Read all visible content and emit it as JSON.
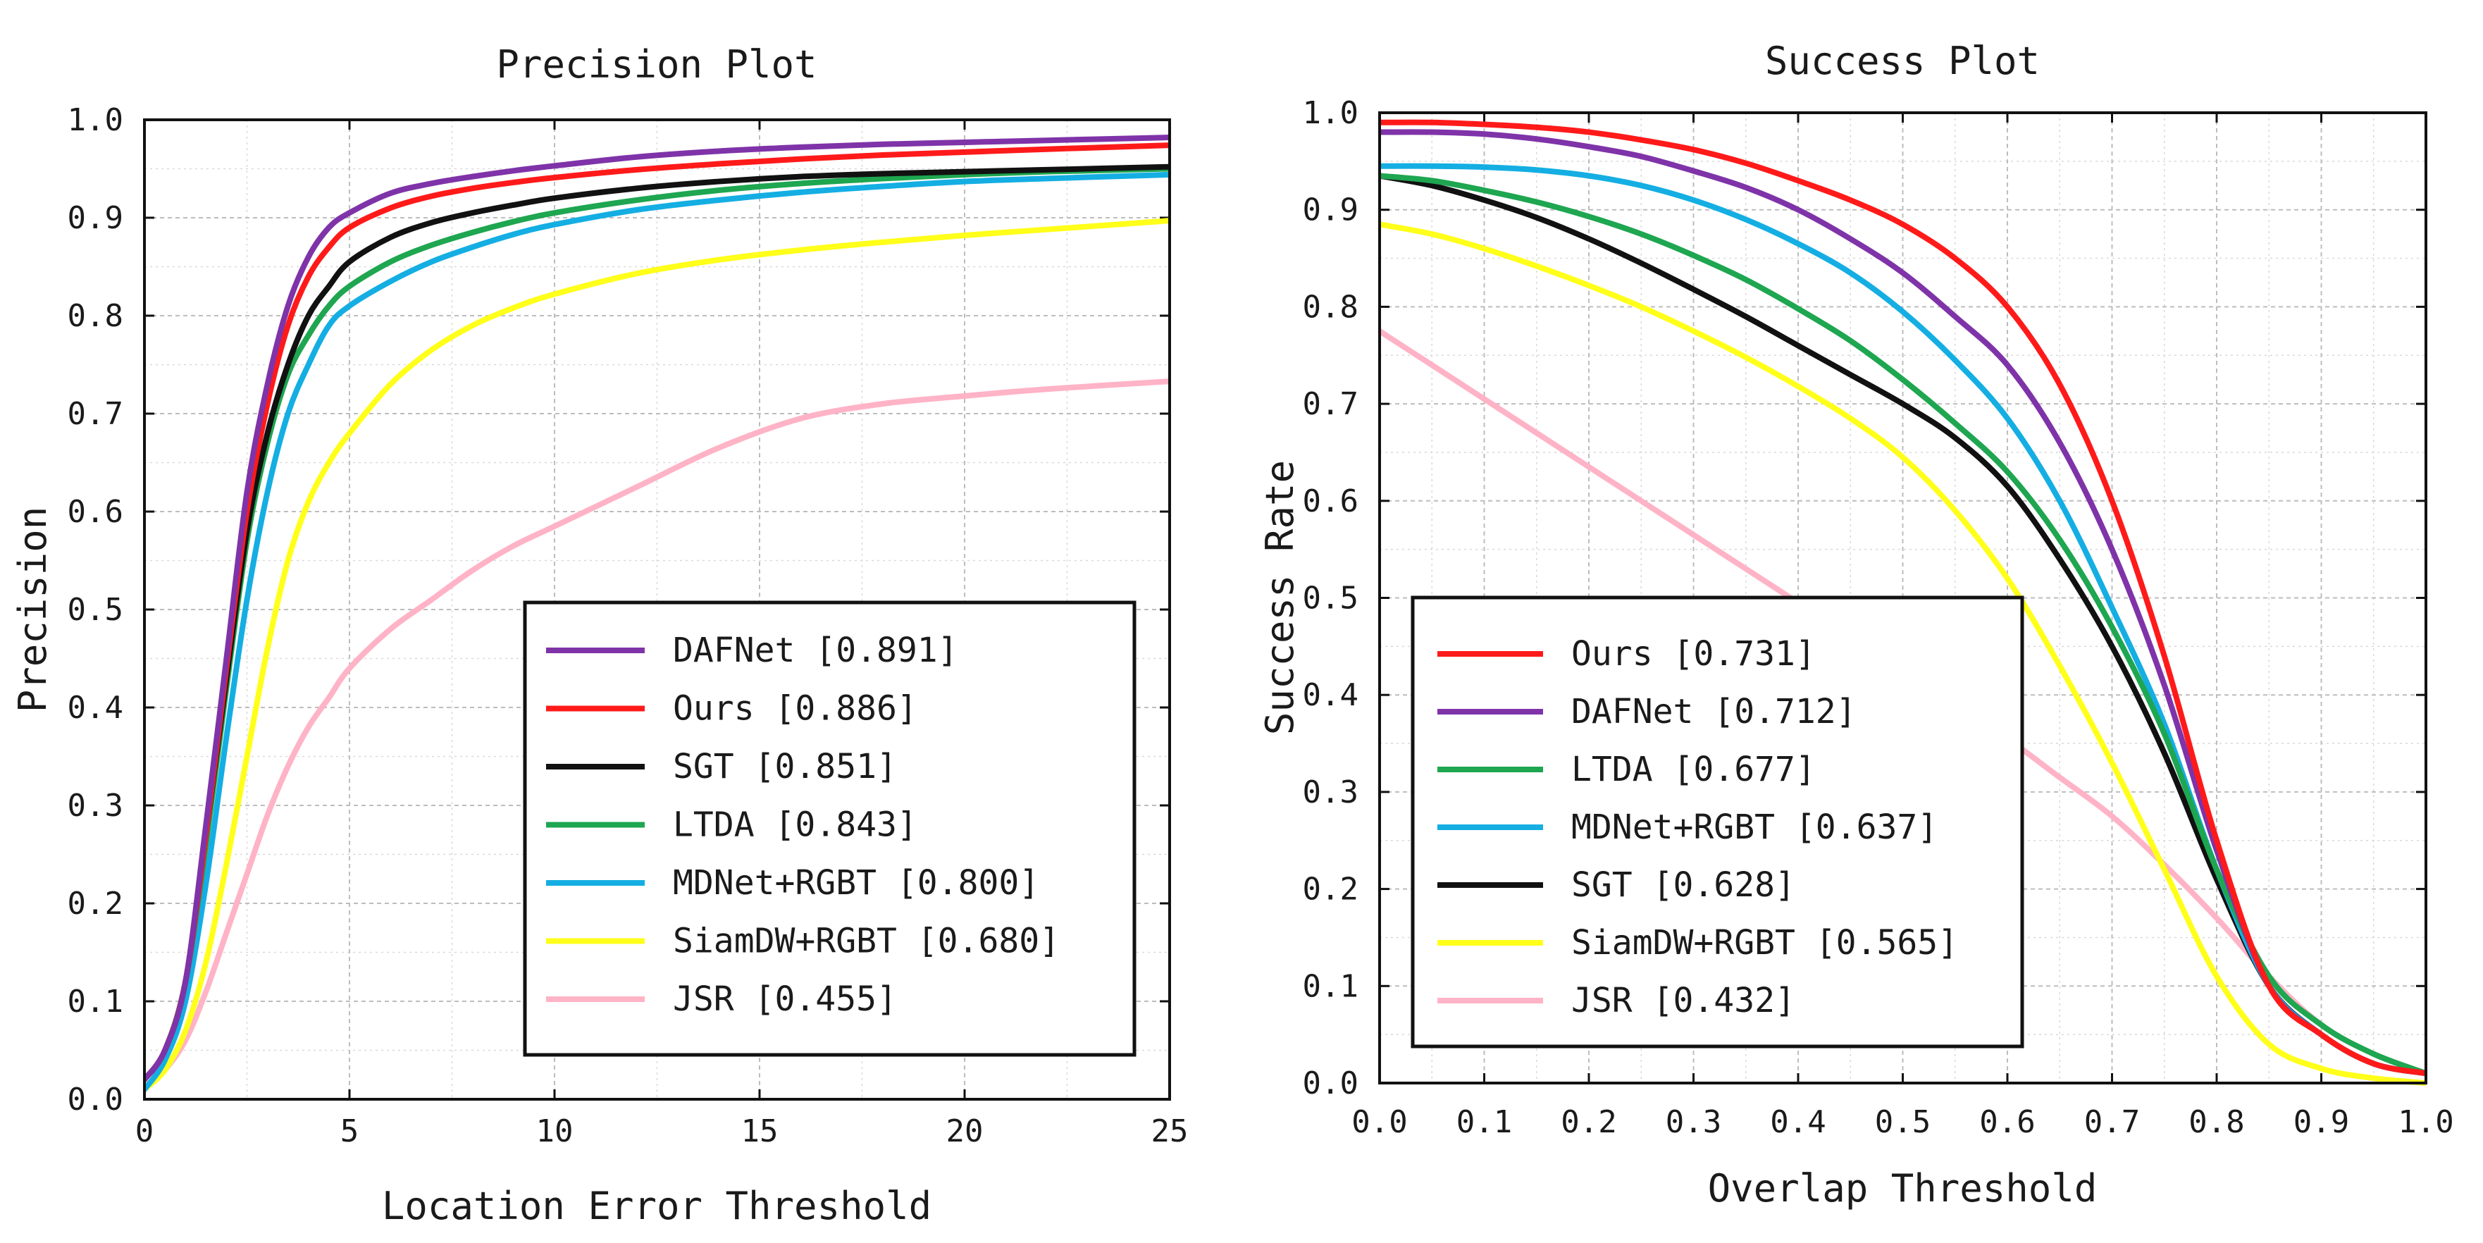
{
  "chart_data": [
    {
      "id": "precision",
      "type": "line",
      "title": "Precision Plot",
      "xlabel": "Location Error Threshold",
      "ylabel": "Precision",
      "xlim": [
        0,
        25
      ],
      "ylim": [
        0,
        1
      ],
      "x_ticks": [
        0,
        5,
        10,
        15,
        20,
        25
      ],
      "x_tick_labels": [
        "0",
        "5",
        "10",
        "15",
        "20",
        "25"
      ],
      "y_ticks": [
        0,
        0.1,
        0.2,
        0.3,
        0.4,
        0.5,
        0.6,
        0.7,
        0.8,
        0.9,
        1.0
      ],
      "y_tick_labels": [
        "0.0",
        "0.1",
        "0.2",
        "0.3",
        "0.4",
        "0.5",
        "0.6",
        "0.7",
        "0.8",
        "0.9",
        "1.0"
      ],
      "grid": true,
      "legend_position": "lower-right",
      "x": [
        0,
        0.5,
        1,
        1.5,
        2,
        2.5,
        3,
        3.5,
        4,
        4.5,
        5,
        6,
        7,
        8,
        9,
        10,
        12,
        14,
        16,
        18,
        20,
        22,
        25
      ],
      "series": [
        {
          "name": "DAFNet",
          "legend": "DAFNet [0.891]",
          "color": "#7f33a8",
          "values": [
            0.02,
            0.05,
            0.12,
            0.28,
            0.45,
            0.62,
            0.73,
            0.81,
            0.86,
            0.89,
            0.905,
            0.925,
            0.935,
            0.942,
            0.948,
            0.953,
            0.962,
            0.968,
            0.972,
            0.975,
            0.977,
            0.979,
            0.982
          ]
        },
        {
          "name": "Ours",
          "legend": "Ours [0.886]",
          "color": "#ff1a1a",
          "values": [
            0.02,
            0.05,
            0.12,
            0.27,
            0.44,
            0.6,
            0.71,
            0.79,
            0.84,
            0.87,
            0.89,
            0.91,
            0.922,
            0.93,
            0.936,
            0.941,
            0.949,
            0.955,
            0.96,
            0.964,
            0.967,
            0.97,
            0.974
          ]
        },
        {
          "name": "SGT",
          "legend": "SGT [0.851]",
          "color": "#111111",
          "values": [
            0.02,
            0.05,
            0.12,
            0.27,
            0.43,
            0.58,
            0.68,
            0.75,
            0.8,
            0.83,
            0.855,
            0.88,
            0.895,
            0.905,
            0.913,
            0.92,
            0.93,
            0.937,
            0.942,
            0.945,
            0.947,
            0.949,
            0.952
          ]
        },
        {
          "name": "LTDA",
          "legend": "LTDA [0.843]",
          "color": "#1ea650",
          "values": [
            0.02,
            0.05,
            0.12,
            0.26,
            0.42,
            0.57,
            0.67,
            0.74,
            0.78,
            0.81,
            0.83,
            0.855,
            0.872,
            0.885,
            0.896,
            0.905,
            0.918,
            0.928,
            0.935,
            0.94,
            0.944,
            0.947,
            0.95
          ]
        },
        {
          "name": "MDNet+RGBT",
          "legend": "MDNet+RGBT [0.800]",
          "color": "#14aee3",
          "values": [
            0.01,
            0.04,
            0.1,
            0.22,
            0.37,
            0.51,
            0.62,
            0.7,
            0.75,
            0.79,
            0.81,
            0.835,
            0.855,
            0.87,
            0.883,
            0.893,
            0.908,
            0.918,
            0.926,
            0.932,
            0.937,
            0.94,
            0.944
          ]
        },
        {
          "name": "SiamDW+RGBT",
          "legend": "SiamDW+RGBT [0.680]",
          "color": "#ffff1a",
          "values": [
            0.01,
            0.03,
            0.07,
            0.14,
            0.24,
            0.35,
            0.46,
            0.55,
            0.61,
            0.65,
            0.68,
            0.73,
            0.765,
            0.79,
            0.808,
            0.822,
            0.843,
            0.857,
            0.867,
            0.875,
            0.882,
            0.888,
            0.897
          ]
        },
        {
          "name": "JSR",
          "legend": "JSR [0.455]",
          "color": "#ffb3c6",
          "values": [
            0.01,
            0.03,
            0.06,
            0.11,
            0.17,
            0.23,
            0.29,
            0.34,
            0.38,
            0.41,
            0.44,
            0.48,
            0.51,
            0.54,
            0.565,
            0.585,
            0.625,
            0.665,
            0.695,
            0.71,
            0.718,
            0.725,
            0.733
          ]
        }
      ]
    },
    {
      "id": "success",
      "type": "line",
      "title": "Success Plot",
      "xlabel": "Overlap Threshold",
      "ylabel": "Success Rate",
      "xlim": [
        0,
        1
      ],
      "ylim": [
        0,
        1
      ],
      "x_ticks": [
        0,
        0.1,
        0.2,
        0.3,
        0.4,
        0.5,
        0.6,
        0.7,
        0.8,
        0.9,
        1.0
      ],
      "x_tick_labels": [
        "0.0",
        "0.1",
        "0.2",
        "0.3",
        "0.4",
        "0.5",
        "0.6",
        "0.7",
        "0.8",
        "0.9",
        "1.0"
      ],
      "y_ticks": [
        0,
        0.1,
        0.2,
        0.3,
        0.4,
        0.5,
        0.6,
        0.7,
        0.8,
        0.9,
        1.0
      ],
      "y_tick_labels": [
        "0.0",
        "0.1",
        "0.2",
        "0.3",
        "0.4",
        "0.5",
        "0.6",
        "0.7",
        "0.8",
        "0.9",
        "1.0"
      ],
      "grid": true,
      "legend_position": "lower-left",
      "x": [
        0,
        0.05,
        0.1,
        0.15,
        0.2,
        0.25,
        0.3,
        0.35,
        0.4,
        0.45,
        0.5,
        0.55,
        0.6,
        0.65,
        0.7,
        0.75,
        0.8,
        0.85,
        0.9,
        0.95,
        1.0
      ],
      "series": [
        {
          "name": "Ours",
          "legend": "Ours [0.731]",
          "color": "#ff1a1a",
          "values": [
            0.99,
            0.99,
            0.988,
            0.985,
            0.98,
            0.972,
            0.962,
            0.948,
            0.93,
            0.91,
            0.885,
            0.85,
            0.8,
            0.72,
            0.6,
            0.44,
            0.25,
            0.1,
            0.05,
            0.02,
            0.01
          ]
        },
        {
          "name": "DAFNet",
          "legend": "DAFNet [0.712]",
          "color": "#7f33a8",
          "values": [
            0.98,
            0.98,
            0.978,
            0.973,
            0.965,
            0.955,
            0.94,
            0.923,
            0.9,
            0.87,
            0.835,
            0.79,
            0.74,
            0.66,
            0.55,
            0.41,
            0.24,
            0.1,
            0.05,
            0.02,
            0.01
          ]
        },
        {
          "name": "LTDA",
          "legend": "LTDA [0.677]",
          "color": "#1ea650",
          "values": [
            0.935,
            0.93,
            0.92,
            0.908,
            0.893,
            0.875,
            0.853,
            0.828,
            0.798,
            0.765,
            0.725,
            0.68,
            0.63,
            0.56,
            0.47,
            0.36,
            0.22,
            0.11,
            0.06,
            0.03,
            0.01
          ]
        },
        {
          "name": "MDNet+RGBT",
          "legend": "MDNet+RGBT [0.637]",
          "color": "#14aee3",
          "values": [
            0.945,
            0.945,
            0.944,
            0.941,
            0.935,
            0.925,
            0.91,
            0.89,
            0.865,
            0.835,
            0.795,
            0.745,
            0.685,
            0.6,
            0.49,
            0.37,
            0.22,
            0.1,
            0.05,
            0.02,
            0.01
          ]
        },
        {
          "name": "SGT",
          "legend": "SGT [0.628]",
          "color": "#111111",
          "values": [
            0.935,
            0.925,
            0.91,
            0.892,
            0.87,
            0.845,
            0.818,
            0.79,
            0.76,
            0.73,
            0.7,
            0.665,
            0.615,
            0.54,
            0.45,
            0.34,
            0.21,
            0.1,
            0.05,
            0.02,
            0.01
          ]
        },
        {
          "name": "SiamDW+RGBT",
          "legend": "SiamDW+RGBT [0.565]",
          "color": "#ffff1a",
          "values": [
            0.885,
            0.875,
            0.86,
            0.842,
            0.822,
            0.8,
            0.775,
            0.748,
            0.718,
            0.685,
            0.645,
            0.59,
            0.52,
            0.43,
            0.33,
            0.22,
            0.11,
            0.04,
            0.015,
            0.005,
            0.0
          ]
        },
        {
          "name": "JSR",
          "legend": "JSR [0.432]",
          "color": "#ffb3c6",
          "values": [
            0.775,
            0.74,
            0.705,
            0.67,
            0.635,
            0.6,
            0.565,
            0.53,
            0.495,
            0.46,
            0.425,
            0.39,
            0.355,
            0.315,
            0.275,
            0.225,
            0.17,
            0.11,
            0.06,
            0.03,
            0.01
          ]
        }
      ]
    }
  ]
}
